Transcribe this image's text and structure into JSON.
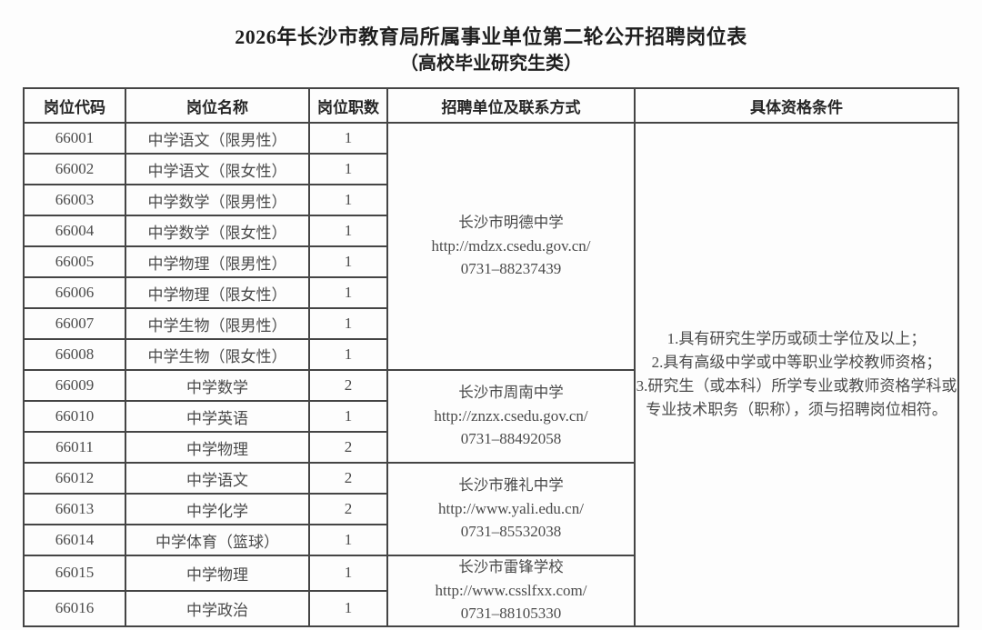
{
  "title": {
    "line1": "2026年长沙市教育局所属事业单位第二轮公开招聘岗位表",
    "line2": "（高校毕业研究生类）"
  },
  "colors": {
    "background": "#fdfdfd",
    "border": "#454545",
    "heading_text": "#1e1e1e",
    "body_text": "#4a4a4a"
  },
  "table": {
    "headers": [
      "岗位代码",
      "岗位名称",
      "岗位职数",
      "招聘单位及联系方式",
      "具体资格条件"
    ],
    "rows": [
      {
        "code": "66001",
        "name": "中学语文（限男性）",
        "count": "1"
      },
      {
        "code": "66002",
        "name": "中学语文（限女性）",
        "count": "1"
      },
      {
        "code": "66003",
        "name": "中学数学（限男性）",
        "count": "1"
      },
      {
        "code": "66004",
        "name": "中学数学（限女性）",
        "count": "1"
      },
      {
        "code": "66005",
        "name": "中学物理（限男性）",
        "count": "1"
      },
      {
        "code": "66006",
        "name": "中学物理（限女性）",
        "count": "1"
      },
      {
        "code": "66007",
        "name": "中学生物（限男性）",
        "count": "1"
      },
      {
        "code": "66008",
        "name": "中学生物（限女性）",
        "count": "1"
      },
      {
        "code": "66009",
        "name": "中学数学",
        "count": "2"
      },
      {
        "code": "66010",
        "name": "中学英语",
        "count": "1"
      },
      {
        "code": "66011",
        "name": "中学物理",
        "count": "2"
      },
      {
        "code": "66012",
        "name": "中学语文",
        "count": "2"
      },
      {
        "code": "66013",
        "name": "中学化学",
        "count": "2"
      },
      {
        "code": "66014",
        "name": "中学体育（篮球）",
        "count": "1"
      },
      {
        "code": "66015",
        "name": "中学物理",
        "count": "1"
      },
      {
        "code": "66016",
        "name": "中学政治",
        "count": "1"
      }
    ],
    "unit_groups": [
      {
        "start": 0,
        "span": 8,
        "school": "长沙市明德中学",
        "url": "http://mdzx.csedu.gov.cn/",
        "phone": "0731–88237439"
      },
      {
        "start": 8,
        "span": 3,
        "school": "长沙市周南中学",
        "url": "http://znzx.csedu.gov.cn/",
        "phone": "0731–88492058"
      },
      {
        "start": 11,
        "span": 3,
        "school": "长沙市雅礼中学",
        "url": "http://www.yali.edu.cn/",
        "phone": "0731–85532038"
      },
      {
        "start": 14,
        "span": 2,
        "school": "长沙市雷锋学校",
        "url": "http://www.csslfxx.com/",
        "phone": "0731–88105330"
      }
    ],
    "qualifications": {
      "span": 16,
      "lines": [
        "1.具有研究生学历或硕士学位及以上；",
        "2.具有高级中学或中等职业学校教师资格；",
        "3.研究生（或本科）所学专业或教师资格学科或专业技术职务（职称），须与招聘岗位相符。"
      ]
    }
  }
}
